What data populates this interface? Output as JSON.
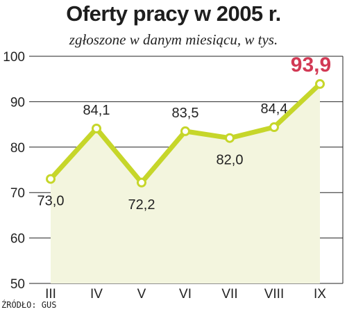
{
  "chart_data": {
    "type": "line",
    "title": "Oferty pracy w 2005 r.",
    "subtitle": "zgłoszone w danym miesiącu, w tys.",
    "xlabel": "",
    "ylabel": "",
    "categories": [
      "III",
      "IV",
      "V",
      "VI",
      "VII",
      "VIII",
      "IX"
    ],
    "values": [
      73.0,
      84.1,
      72.2,
      83.5,
      82.0,
      84.4,
      93.9
    ],
    "data_labels": [
      "73,0",
      "84,1",
      "72,2",
      "83,5",
      "82,0",
      "84,4",
      "93,9"
    ],
    "highlight_index": 6,
    "ylim": [
      50,
      100
    ],
    "yticks": [
      50,
      60,
      70,
      80,
      90,
      100
    ],
    "ytick_labels": [
      "50",
      "60",
      "70",
      "80",
      "90",
      "100"
    ],
    "grid": true,
    "source": "ŹRÓDŁO: GUS",
    "colors": {
      "line": "#c6d62a",
      "area": "#f3f5de",
      "marker_fill": "#ffffff",
      "highlight": "#d23a55",
      "grid": "#222222",
      "text": "#222222"
    }
  }
}
